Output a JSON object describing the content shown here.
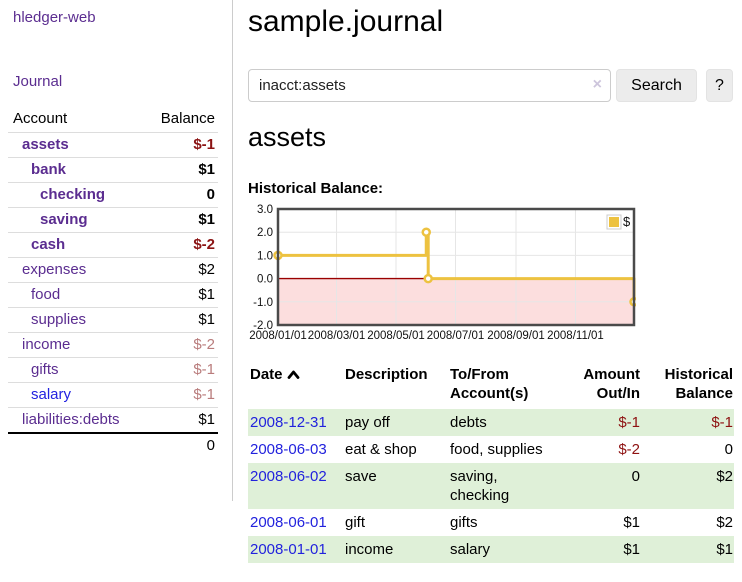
{
  "app": {
    "title": "hledger-web"
  },
  "sidebar": {
    "journal_label": "Journal",
    "accounts_table": {
      "headers": {
        "account": "Account",
        "balance": "Balance"
      },
      "rows": [
        {
          "account": "assets",
          "indent": 1,
          "bold": true,
          "visited": true,
          "balance": "$-1",
          "balance_class": "neg-strong"
        },
        {
          "account": "bank",
          "indent": 2,
          "bold": true,
          "visited": true,
          "balance": "$1",
          "balance_class": ""
        },
        {
          "account": "checking",
          "indent": 3,
          "bold": true,
          "visited": true,
          "balance": "0",
          "balance_class": ""
        },
        {
          "account": "saving",
          "indent": 3,
          "bold": true,
          "visited": true,
          "balance": "$1",
          "balance_class": ""
        },
        {
          "account": "cash",
          "indent": 2,
          "bold": true,
          "visited": true,
          "balance": "$-2",
          "balance_class": "neg-strong"
        },
        {
          "account": "expenses",
          "indent": 1,
          "bold": false,
          "visited": true,
          "balance": "$2",
          "balance_class": ""
        },
        {
          "account": "food",
          "indent": 2,
          "bold": false,
          "visited": true,
          "balance": "$1",
          "balance_class": ""
        },
        {
          "account": "supplies",
          "indent": 2,
          "bold": false,
          "visited": true,
          "balance": "$1",
          "balance_class": ""
        },
        {
          "account": "income",
          "indent": 1,
          "bold": false,
          "visited": true,
          "balance": "$-2",
          "balance_class": "neg-muted"
        },
        {
          "account": "gifts",
          "indent": 2,
          "bold": false,
          "visited": true,
          "balance": "$-1",
          "balance_class": "neg-muted"
        },
        {
          "account": "salary",
          "indent": 2,
          "bold": false,
          "visited": false,
          "balance": "$-1",
          "balance_class": "neg-muted"
        },
        {
          "account": "liabilities:debts",
          "indent": 1,
          "bold": false,
          "visited": true,
          "balance": "$1",
          "balance_class": ""
        }
      ],
      "total": "0"
    }
  },
  "main": {
    "title": "sample.journal",
    "search": {
      "value": "inacct:assets",
      "clear_icon": "×",
      "search_button": "Search",
      "help_button": "?"
    },
    "account_heading": "assets",
    "chart_label": "Historical Balance:"
  },
  "chart_data": {
    "type": "line",
    "title": "Historical Balance",
    "legend": {
      "label": "$",
      "position": "top-right"
    },
    "series": [
      {
        "name": "$",
        "color": "#edc240",
        "step": true,
        "points": [
          {
            "date": "2008-01-01",
            "value": 1
          },
          {
            "date": "2008-06-01",
            "value": 2
          },
          {
            "date": "2008-06-03",
            "value": 0
          },
          {
            "date": "2008-12-31",
            "value": -1
          }
        ]
      }
    ],
    "xlim": [
      "2008-01-01",
      "2008-12-31"
    ],
    "ylim": [
      -2,
      3
    ],
    "yticks": [
      {
        "value": 3,
        "label": "3.0"
      },
      {
        "value": 2,
        "label": "2.0"
      },
      {
        "value": 1,
        "label": "1.0"
      },
      {
        "value": 0,
        "label": "0.0"
      },
      {
        "value": -1,
        "label": "-1.0"
      },
      {
        "value": -2,
        "label": "-2.0"
      }
    ],
    "xticks": [
      {
        "date": "2008-01-01",
        "label": "2008/01/01"
      },
      {
        "date": "2008-03-01",
        "label": "2008/03/01"
      },
      {
        "date": "2008-05-01",
        "label": "2008/05/01"
      },
      {
        "date": "2008-07-01",
        "label": "2008/07/01"
      },
      {
        "date": "2008-09-01",
        "label": "2008/09/01"
      },
      {
        "date": "2008-11-01",
        "label": "2008/11/01"
      }
    ],
    "grid": true,
    "colors": {
      "zero_line": "#9a0000",
      "negative_region": "#fcdede",
      "grid_line": "#e6e6e6",
      "border": "#4a4a4a"
    }
  },
  "register_table": {
    "headers": [
      {
        "label": "Date",
        "align": "left",
        "sort": "asc"
      },
      {
        "label": "Description",
        "align": "left"
      },
      {
        "label": "To/From Account(s)",
        "align": "left"
      },
      {
        "label": "Amount Out/In",
        "align": "right"
      },
      {
        "label": "Historical Balance",
        "align": "right"
      }
    ],
    "rows": [
      {
        "date": "2008-12-31",
        "description": "pay off",
        "accounts": "debts",
        "amount": "$-1",
        "amount_negative": true,
        "balance": "$-1",
        "balance_negative": true
      },
      {
        "date": "2008-06-03",
        "description": "eat & shop",
        "accounts": "food, supplies",
        "amount": "$-2",
        "amount_negative": true,
        "balance": "0",
        "balance_negative": false
      },
      {
        "date": "2008-06-02",
        "description": "save",
        "accounts": "saving, checking",
        "amount": "0",
        "amount_negative": false,
        "balance": "$2",
        "balance_negative": false
      },
      {
        "date": "2008-06-01",
        "description": "gift",
        "accounts": "gifts",
        "amount": "$1",
        "amount_negative": false,
        "balance": "$2",
        "balance_negative": false
      },
      {
        "date": "2008-01-01",
        "description": "income",
        "accounts": "salary",
        "amount": "$1",
        "amount_negative": false,
        "balance": "$1",
        "balance_negative": false
      }
    ]
  }
}
